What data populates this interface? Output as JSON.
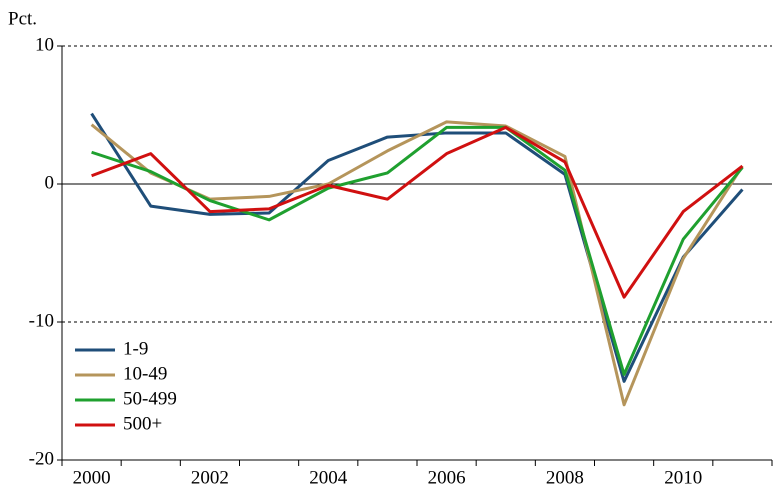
{
  "chart_data": {
    "type": "line",
    "y_label": "Pct.",
    "categories": [
      "2000",
      null,
      "2002",
      null,
      "2004",
      null,
      "2006",
      null,
      "2008",
      null,
      "2010",
      null
    ],
    "series": [
      {
        "name": "1-9",
        "color": "#1f4e79",
        "values": [
          5.1,
          -1.6,
          -2.2,
          -2.1,
          1.7,
          3.4,
          3.7,
          3.7,
          0.7,
          -14.3,
          -5.3,
          -0.4
        ]
      },
      {
        "name": "10-49",
        "color": "#b5955b",
        "values": [
          4.3,
          0.8,
          -1.1,
          -0.9,
          0.0,
          2.4,
          4.5,
          4.2,
          2.0,
          -16.0,
          -5.4,
          1.3
        ]
      },
      {
        "name": "50-499",
        "color": "#1fa02f",
        "values": [
          2.3,
          0.9,
          -1.2,
          -2.6,
          -0.3,
          0.8,
          4.1,
          4.1,
          1.0,
          -13.8,
          -4.0,
          1.2
        ]
      },
      {
        "name": "500+",
        "color": "#d01010",
        "values": [
          0.6,
          2.2,
          -2.0,
          -1.8,
          -0.1,
          -1.1,
          2.2,
          4.1,
          1.6,
          -8.2,
          -2.0,
          1.3
        ]
      }
    ],
    "ylim": [
      -20,
      10
    ],
    "yticks": [
      -20,
      -10,
      0,
      10
    ],
    "grid": true,
    "legend": "lower-left"
  }
}
